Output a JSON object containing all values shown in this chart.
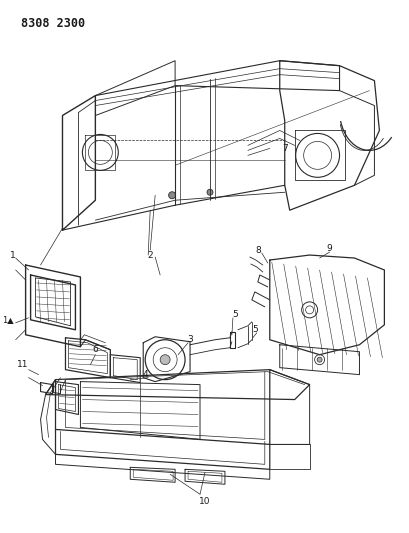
{
  "page_id": "8308 2300",
  "background_color": "#ffffff",
  "line_color": "#2a2a2a",
  "label_color": "#1a1a1a",
  "fig_width": 4.1,
  "fig_height": 5.33,
  "dpi": 100
}
